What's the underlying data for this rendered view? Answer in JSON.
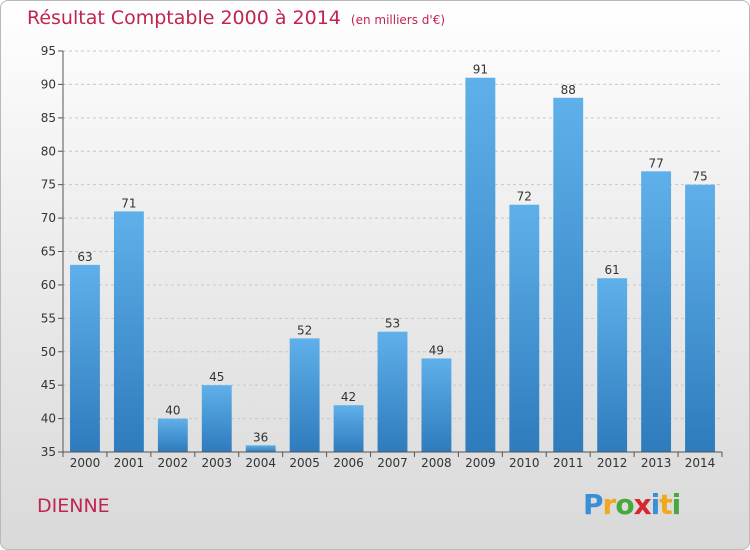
{
  "title": "Résultat Comptable 2000 à 2014",
  "unit": "(en milliers d'€)",
  "commune": "DIENNE",
  "logo": {
    "letters": [
      "P",
      "r",
      "o",
      "x",
      "i",
      "t",
      "i"
    ],
    "colors": [
      "#3a8fd6",
      "#f0a81e",
      "#48a83c",
      "#d8262e",
      "#3a8fd6",
      "#f0a81e",
      "#48a83c"
    ]
  },
  "colors": {
    "title": "#c0254f",
    "bar_top": "#5fb0ea",
    "bar_bottom": "#2e7bbd"
  },
  "chart_data": {
    "type": "bar",
    "title": "Résultat Comptable 2000 à 2014",
    "categories": [
      "2000",
      "2001",
      "2002",
      "2003",
      "2004",
      "2005",
      "2006",
      "2007",
      "2008",
      "2009",
      "2010",
      "2011",
      "2012",
      "2013",
      "2014"
    ],
    "values": [
      63,
      71,
      40,
      45,
      36,
      52,
      42,
      53,
      49,
      91,
      72,
      88,
      61,
      77,
      75
    ],
    "ylim": [
      35,
      95
    ],
    "yticks": [
      35,
      40,
      45,
      50,
      55,
      60,
      65,
      70,
      75,
      80,
      85,
      90,
      95
    ],
    "grid": true
  }
}
